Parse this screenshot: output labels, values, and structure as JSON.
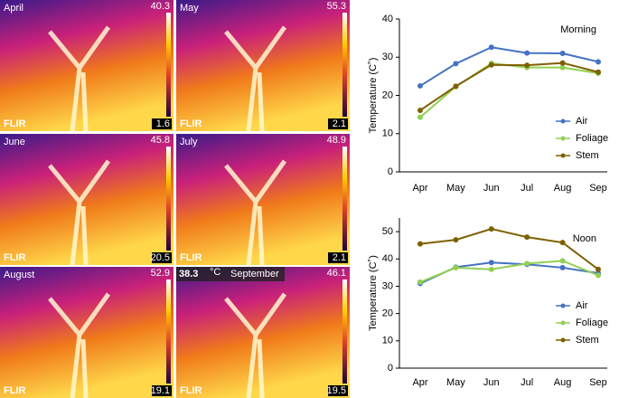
{
  "images": {
    "panels": [
      {
        "month": "April",
        "max": "40.3",
        "min": "1.6",
        "logo": "FLIR"
      },
      {
        "month": "May",
        "max": "55.3",
        "min": "2.1",
        "logo": "FLIR"
      },
      {
        "month": "June",
        "max": "45.8",
        "min": "20.5",
        "logo": "FLIR"
      },
      {
        "month": "July",
        "max": "48.9",
        "min": "2.1",
        "logo": "FLIR"
      },
      {
        "month": "August",
        "max": "52.9",
        "min": "19.1",
        "logo": "FLIR"
      },
      {
        "month": "September",
        "max": "46.1",
        "min": "19.5",
        "logo": "FLIR",
        "spot": "38.3",
        "unit": "°C"
      }
    ]
  },
  "chart_data": [
    {
      "type": "line",
      "title": "Morning",
      "ylabel": "Temperature (C˚)",
      "categories": [
        "Apr",
        "May",
        "Jun",
        "Jul",
        "Aug",
        "Sep"
      ],
      "ylim": [
        0,
        40
      ],
      "yticks": [
        0,
        10,
        20,
        30,
        40
      ],
      "legend": "lower right",
      "series": [
        {
          "name": "Air",
          "color": "#4472c4",
          "values": [
            22.5,
            28.3,
            32.6,
            31.1,
            31.0,
            28.8
          ]
        },
        {
          "name": "Foliage",
          "color": "#92d050",
          "values": [
            14.3,
            22.3,
            28.4,
            27.3,
            27.3,
            25.8
          ]
        },
        {
          "name": "Stem",
          "color": "#7f6000",
          "values": [
            16.1,
            22.4,
            28.0,
            27.9,
            28.5,
            26.1
          ]
        }
      ]
    },
    {
      "type": "line",
      "title": "Noon",
      "ylabel": "Temperature (C˚)",
      "categories": [
        "Apr",
        "May",
        "Jun",
        "Jul",
        "Aug",
        "Sep"
      ],
      "ylim": [
        0,
        55
      ],
      "yticks": [
        0,
        10,
        20,
        30,
        40,
        50
      ],
      "legend": "lower right",
      "series": [
        {
          "name": "Air",
          "color": "#4472c4",
          "values": [
            31.0,
            37.0,
            38.7,
            38.0,
            36.8,
            34.8
          ]
        },
        {
          "name": "Foliage",
          "color": "#92d050",
          "values": [
            31.5,
            36.8,
            36.2,
            38.3,
            39.3,
            34.0
          ]
        },
        {
          "name": "Stem",
          "color": "#7f6000",
          "values": [
            45.5,
            47.0,
            51.0,
            48.0,
            46.0,
            36.2
          ]
        }
      ]
    }
  ]
}
